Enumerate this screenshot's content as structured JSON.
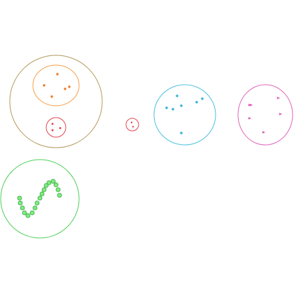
{
  "colors": {
    "olive": "#b39b5e",
    "orange": "#f5a04a",
    "orange_dot": "#f07a2a",
    "red": "#e2474f",
    "cyan": "#4ec0df",
    "cyan_dot": "#38b4dc",
    "magenta": "#e066b8",
    "magenta_dot": "#e055b0",
    "green": "#4fcf5a",
    "green_fill": "#7fea80",
    "green_stroke": "#3aa846"
  }
}
